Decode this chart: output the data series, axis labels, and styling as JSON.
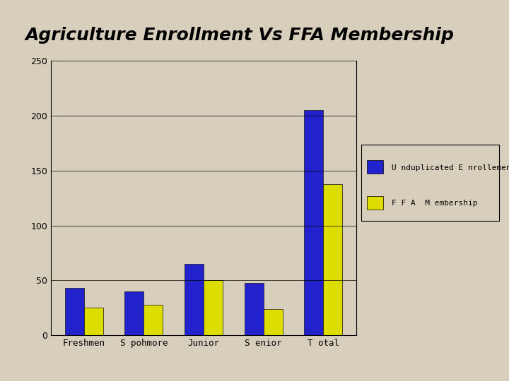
{
  "title": "Agriculture Enrollment Vs FFA Membership",
  "categories": [
    "Freshmen",
    "S pohmore",
    "Junior",
    "S enior",
    "T otal"
  ],
  "unduplicated_enrollment": [
    43,
    40,
    65,
    48,
    205
  ],
  "ffa_membership": [
    25,
    28,
    50,
    24,
    138
  ],
  "bar_color_enrollment": "#2222cc",
  "bar_color_ffa": "#dddd00",
  "background_color": "#d8cebc",
  "plot_bg_color": "#d8cebc",
  "ylim": [
    0,
    250
  ],
  "yticks": [
    0,
    50,
    100,
    150,
    200,
    250
  ],
  "legend_label_enrollment": "U nduplicated E nrollement",
  "legend_label_ffa": "F F A  M embership",
  "title_fontsize": 18,
  "tick_fontsize": 9,
  "legend_fontsize": 9
}
